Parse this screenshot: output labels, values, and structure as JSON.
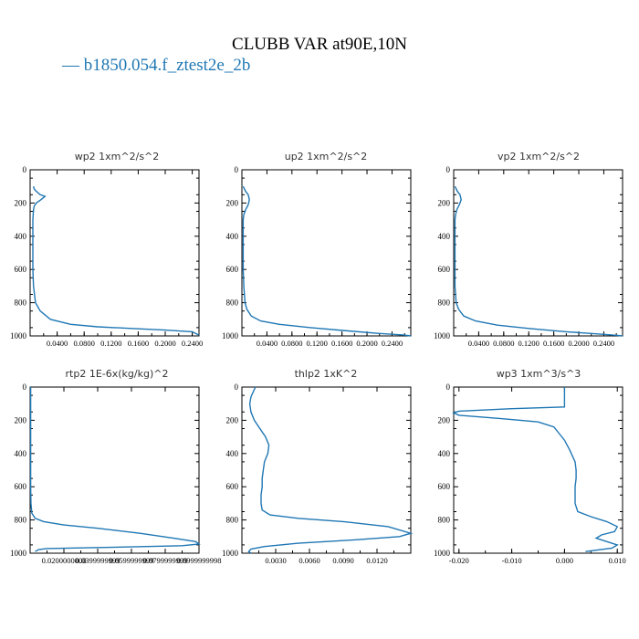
{
  "figure": {
    "title": "CLUBB VAR at90E,10N",
    "legend": "— b1850.054.f_ztest2e_2b",
    "series_color": "#1f77b4"
  },
  "chart_data": [
    {
      "type": "line",
      "title": "wp2   1xm^2/s^2",
      "ylim": [
        0,
        1000
      ],
      "yticks": [
        0,
        200,
        400,
        600,
        800,
        1000
      ],
      "xlim": [
        0,
        0.25
      ],
      "xticks": [
        0.04,
        0.08,
        0.12,
        0.16,
        0.2,
        0.24
      ],
      "xtick_labels": [
        "0.0400",
        "0.0800",
        "0.1200",
        "0.1600",
        "0.2000",
        "0.2400"
      ],
      "series": [
        {
          "x": [
            0.005,
            0.006,
            0.008,
            0.012,
            0.015,
            0.022,
            0.016,
            0.009,
            0.006,
            0.005,
            0.004,
            0.004,
            0.004,
            0.004,
            0.005,
            0.008,
            0.015,
            0.03,
            0.06,
            0.1,
            0.15,
            0.2,
            0.24,
            0.245,
            0.25
          ],
          "y": [
            100,
            115,
            125,
            140,
            150,
            160,
            180,
            200,
            220,
            240,
            300,
            400,
            500,
            600,
            700,
            800,
            850,
            900,
            930,
            945,
            955,
            965,
            975,
            985,
            995
          ]
        }
      ]
    },
    {
      "type": "line",
      "title": "up2   1xm^2/s^2",
      "ylim": [
        0,
        1000
      ],
      "yticks": [
        0,
        200,
        400,
        600,
        800,
        1000
      ],
      "xlim": [
        0,
        0.27
      ],
      "xticks": [
        0.04,
        0.08,
        0.12,
        0.16,
        0.2,
        0.24
      ],
      "xtick_labels": [
        "0.0400",
        "0.0800",
        "0.1200",
        "0.1600",
        "0.2000",
        "0.2400"
      ],
      "series": [
        {
          "x": [
            0.002,
            0.006,
            0.01,
            0.012,
            0.01,
            0.006,
            0.003,
            0.002,
            0.002,
            0.002,
            0.003,
            0.005,
            0.008,
            0.015,
            0.03,
            0.06,
            0.11,
            0.17,
            0.22,
            0.26,
            0.27
          ],
          "y": [
            100,
            130,
            150,
            180,
            210,
            240,
            270,
            300,
            400,
            600,
            700,
            800,
            840,
            880,
            910,
            930,
            950,
            970,
            985,
            995,
            1000
          ]
        }
      ]
    },
    {
      "type": "line",
      "title": "vp2   1xm^2/s^2",
      "ylim": [
        0,
        1000
      ],
      "yticks": [
        0,
        200,
        400,
        600,
        800,
        1000
      ],
      "xlim": [
        0,
        0.27
      ],
      "xticks": [
        0.04,
        0.08,
        0.12,
        0.16,
        0.2,
        0.24
      ],
      "xtick_labels": [
        "0.0400",
        "0.0800",
        "0.1200",
        "0.1600",
        "0.2000",
        "0.2400"
      ],
      "series": [
        {
          "x": [
            0.002,
            0.006,
            0.01,
            0.012,
            0.009,
            0.005,
            0.003,
            0.002,
            0.002,
            0.002,
            0.004,
            0.008,
            0.016,
            0.035,
            0.07,
            0.12,
            0.18,
            0.23,
            0.26,
            0.27
          ],
          "y": [
            100,
            130,
            150,
            180,
            210,
            240,
            270,
            300,
            400,
            700,
            800,
            840,
            880,
            910,
            935,
            955,
            975,
            988,
            996,
            1000
          ]
        }
      ]
    },
    {
      "type": "line",
      "title": "rtp2   1E-6x(kg/kg)^2",
      "ylim": [
        0,
        1000
      ],
      "yticks": [
        0,
        200,
        400,
        600,
        800,
        1000
      ],
      "xlim": [
        0,
        0.1
      ],
      "xticks": [
        0.02,
        0.04,
        0.06,
        0.08,
        0.1
      ],
      "xtick_labels": [
        "0.0200000000",
        "0.0399999999",
        "0.0599999999",
        "0.0799999999",
        "0.0999999998"
      ],
      "series": [
        {
          "x": [
            0.0003,
            0.0003,
            0.0003,
            0.0003,
            0.0005,
            0.001,
            0.003,
            0.008,
            0.02,
            0.04,
            0.065,
            0.085,
            0.098,
            0.1,
            0.09,
            0.06,
            0.03,
            0.01,
            0.005,
            0.003
          ],
          "y": [
            0,
            200,
            400,
            600,
            700,
            760,
            790,
            810,
            830,
            850,
            880,
            910,
            930,
            945,
            955,
            962,
            968,
            972,
            978,
            990
          ]
        }
      ]
    },
    {
      "type": "line",
      "title": "thlp2   1xK^2",
      "ylim": [
        0,
        1000
      ],
      "yticks": [
        0,
        200,
        400,
        600,
        800,
        1000
      ],
      "xlim": [
        0,
        0.015
      ],
      "xticks": [
        0.003,
        0.006,
        0.009,
        0.012
      ],
      "xtick_labels": [
        "0.0030",
        "0.0060",
        "0.0090",
        "0.0120"
      ],
      "series": [
        {
          "x": [
            0.0012,
            0.001,
            0.0008,
            0.0007,
            0.0008,
            0.0011,
            0.0016,
            0.0021,
            0.0024,
            0.0023,
            0.002,
            0.0019,
            0.0018,
            0.0018,
            0.0017,
            0.0017,
            0.0018,
            0.0025,
            0.005,
            0.009,
            0.013,
            0.015,
            0.014,
            0.01,
            0.005,
            0.002,
            0.0008,
            0.0006,
            0.0008
          ],
          "y": [
            0,
            30,
            60,
            100,
            150,
            200,
            250,
            300,
            350,
            400,
            450,
            500,
            550,
            600,
            650,
            700,
            740,
            770,
            790,
            810,
            840,
            880,
            900,
            920,
            940,
            960,
            975,
            990,
            1000
          ]
        }
      ]
    },
    {
      "type": "line",
      "title": "wp3   1xm^3/s^3",
      "ylim": [
        0,
        1000
      ],
      "yticks": [
        0,
        200,
        400,
        600,
        800,
        1000
      ],
      "xlim": [
        -0.021,
        0.011
      ],
      "xticks": [
        -0.02,
        -0.01,
        0.0,
        0.01
      ],
      "xtick_labels": [
        "-0.020",
        "-0.010",
        "0.000",
        "0.010"
      ],
      "series": [
        {
          "x": [
            0.0,
            0.0,
            0.0,
            -0.01,
            -0.02,
            -0.021,
            -0.02,
            -0.012,
            -0.005,
            -0.002,
            -0.001,
            0.0,
            0.001,
            0.002,
            0.0022,
            0.0022,
            0.002,
            0.002,
            0.0025,
            0.005,
            0.008,
            0.01,
            0.0095,
            0.007,
            0.006,
            0.008,
            0.01,
            0.009,
            0.004
          ],
          "y": [
            0,
            50,
            120,
            130,
            145,
            155,
            170,
            190,
            210,
            240,
            280,
            320,
            380,
            450,
            500,
            550,
            600,
            700,
            750,
            780,
            810,
            840,
            870,
            890,
            910,
            930,
            950,
            970,
            990
          ]
        }
      ]
    }
  ]
}
